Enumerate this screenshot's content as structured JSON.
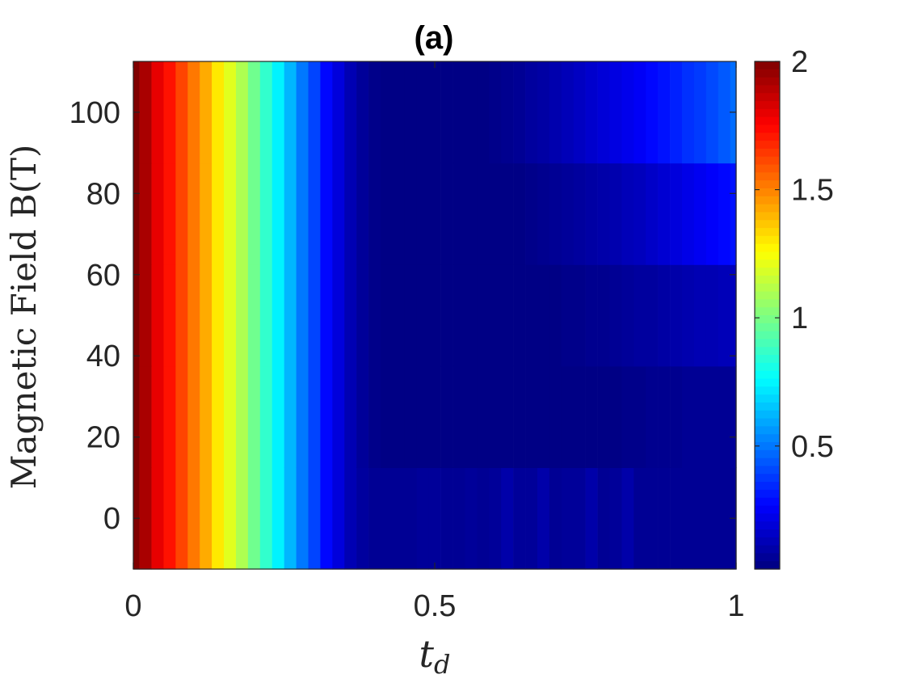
{
  "chart_data": {
    "type": "heatmap",
    "title": "(a)",
    "xlabel": "t",
    "xlabel_subscript": "d",
    "ylabel": "Magnetic Field B(T)",
    "colormap": "jet",
    "xlim": [
      0,
      1
    ],
    "ylim": [
      -12.5,
      112.5
    ],
    "x_ticks": [
      0,
      0.5,
      1
    ],
    "x_tick_labels": [
      "0",
      "0.5",
      "1"
    ],
    "y_ticks": [
      0,
      20,
      40,
      60,
      80,
      100
    ],
    "y_tick_labels": [
      "0",
      "20",
      "40",
      "60",
      "80",
      "100"
    ],
    "colorbar": {
      "range": [
        0.02,
        2
      ],
      "ticks": [
        0.5,
        1,
        1.5,
        2
      ],
      "tick_labels": [
        "0.5",
        "1",
        "1.5",
        "2"
      ]
    },
    "grid": false,
    "x": [
      0.0,
      0.02,
      0.04,
      0.06,
      0.08,
      0.1,
      0.12,
      0.14,
      0.16,
      0.18,
      0.2,
      0.22,
      0.24,
      0.26,
      0.28,
      0.3,
      0.32,
      0.34,
      0.36,
      0.38,
      0.4,
      0.42,
      0.44,
      0.46,
      0.48,
      0.5,
      0.52,
      0.54,
      0.56,
      0.58,
      0.6,
      0.62,
      0.64,
      0.66,
      0.68,
      0.7,
      0.72,
      0.74,
      0.76,
      0.78,
      0.8,
      0.82,
      0.84,
      0.86,
      0.88,
      0.9,
      0.92,
      0.94,
      0.96,
      0.98,
      1.0
    ],
    "y": [
      0,
      25,
      50,
      75,
      100
    ],
    "values": [
      [
        2.0,
        1.92,
        1.8,
        1.72,
        1.62,
        1.52,
        1.42,
        1.3,
        1.2,
        1.1,
        0.98,
        0.86,
        0.74,
        0.62,
        0.5,
        0.4,
        0.28,
        0.2,
        0.12,
        0.08,
        0.06,
        0.06,
        0.06,
        0.06,
        0.07,
        0.07,
        0.06,
        0.06,
        0.07,
        0.06,
        0.07,
        0.1,
        0.07,
        0.07,
        0.1,
        0.06,
        0.07,
        0.07,
        0.1,
        0.06,
        0.07,
        0.1,
        0.06,
        0.06,
        0.06,
        0.06,
        0.06,
        0.06,
        0.06,
        0.06,
        0.06
      ],
      [
        2.0,
        1.92,
        1.8,
        1.72,
        1.62,
        1.52,
        1.42,
        1.3,
        1.2,
        1.1,
        0.98,
        0.86,
        0.74,
        0.62,
        0.5,
        0.4,
        0.28,
        0.2,
        0.12,
        0.07,
        0.04,
        0.03,
        0.03,
        0.03,
        0.03,
        0.03,
        0.03,
        0.03,
        0.03,
        0.03,
        0.03,
        0.03,
        0.03,
        0.03,
        0.03,
        0.03,
        0.03,
        0.03,
        0.03,
        0.03,
        0.03,
        0.04,
        0.04,
        0.05,
        0.05,
        0.05,
        0.06,
        0.06,
        0.06,
        0.06,
        0.07
      ],
      [
        2.0,
        1.92,
        1.8,
        1.72,
        1.62,
        1.52,
        1.42,
        1.3,
        1.2,
        1.1,
        0.98,
        0.86,
        0.74,
        0.62,
        0.5,
        0.4,
        0.28,
        0.2,
        0.12,
        0.07,
        0.04,
        0.03,
        0.03,
        0.03,
        0.03,
        0.03,
        0.03,
        0.03,
        0.03,
        0.03,
        0.03,
        0.03,
        0.03,
        0.03,
        0.03,
        0.03,
        0.04,
        0.04,
        0.05,
        0.05,
        0.06,
        0.07,
        0.08,
        0.08,
        0.09,
        0.1,
        0.11,
        0.12,
        0.12,
        0.13,
        0.14
      ],
      [
        2.0,
        1.92,
        1.8,
        1.72,
        1.62,
        1.52,
        1.42,
        1.3,
        1.2,
        1.1,
        0.98,
        0.86,
        0.74,
        0.62,
        0.5,
        0.4,
        0.28,
        0.2,
        0.12,
        0.07,
        0.04,
        0.03,
        0.03,
        0.03,
        0.03,
        0.03,
        0.03,
        0.03,
        0.03,
        0.03,
        0.03,
        0.03,
        0.03,
        0.04,
        0.05,
        0.06,
        0.07,
        0.08,
        0.09,
        0.1,
        0.11,
        0.13,
        0.14,
        0.16,
        0.18,
        0.2,
        0.22,
        0.24,
        0.26,
        0.28,
        0.3
      ],
      [
        2.0,
        1.92,
        1.8,
        1.72,
        1.62,
        1.52,
        1.42,
        1.3,
        1.2,
        1.1,
        0.98,
        0.86,
        0.74,
        0.62,
        0.5,
        0.4,
        0.28,
        0.2,
        0.12,
        0.07,
        0.04,
        0.03,
        0.03,
        0.03,
        0.03,
        0.03,
        0.03,
        0.03,
        0.03,
        0.03,
        0.04,
        0.05,
        0.06,
        0.08,
        0.09,
        0.11,
        0.13,
        0.15,
        0.17,
        0.19,
        0.21,
        0.23,
        0.25,
        0.28,
        0.3,
        0.33,
        0.36,
        0.38,
        0.41,
        0.44,
        0.48
      ]
    ]
  }
}
